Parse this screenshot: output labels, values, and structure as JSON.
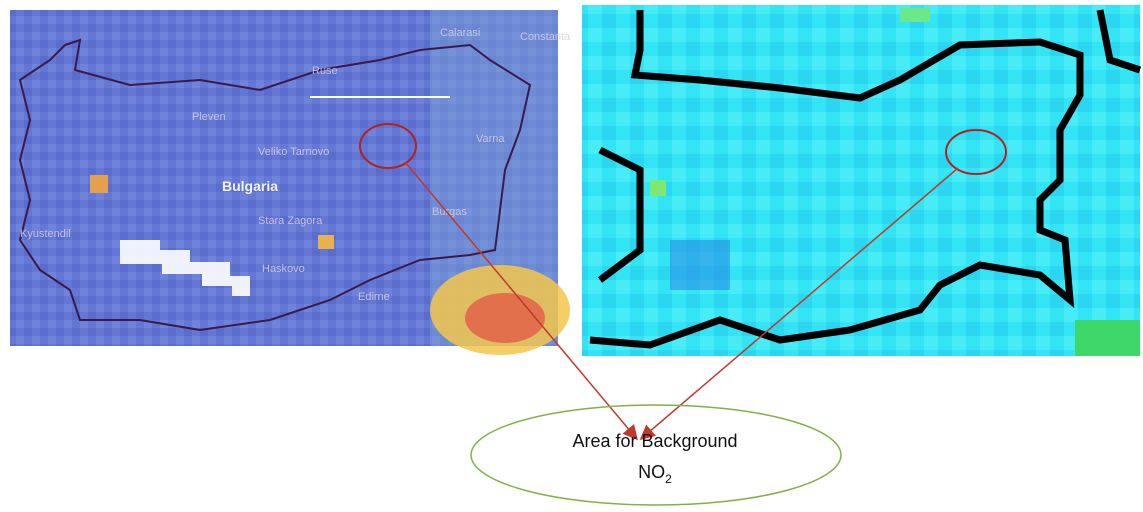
{
  "left_map": {
    "country": "Bulgaria",
    "places": [
      "Calarasi",
      "Constanta",
      "Ruse",
      "Pleven",
      "Veliko Tarnovo",
      "Varna",
      "Burgas",
      "Stara Zagora",
      "Kyustendil",
      "Haskovo",
      "Edirne"
    ]
  },
  "annotation": {
    "line1": "Area for Background",
    "line2": "NO",
    "line2_subscript": "2"
  }
}
